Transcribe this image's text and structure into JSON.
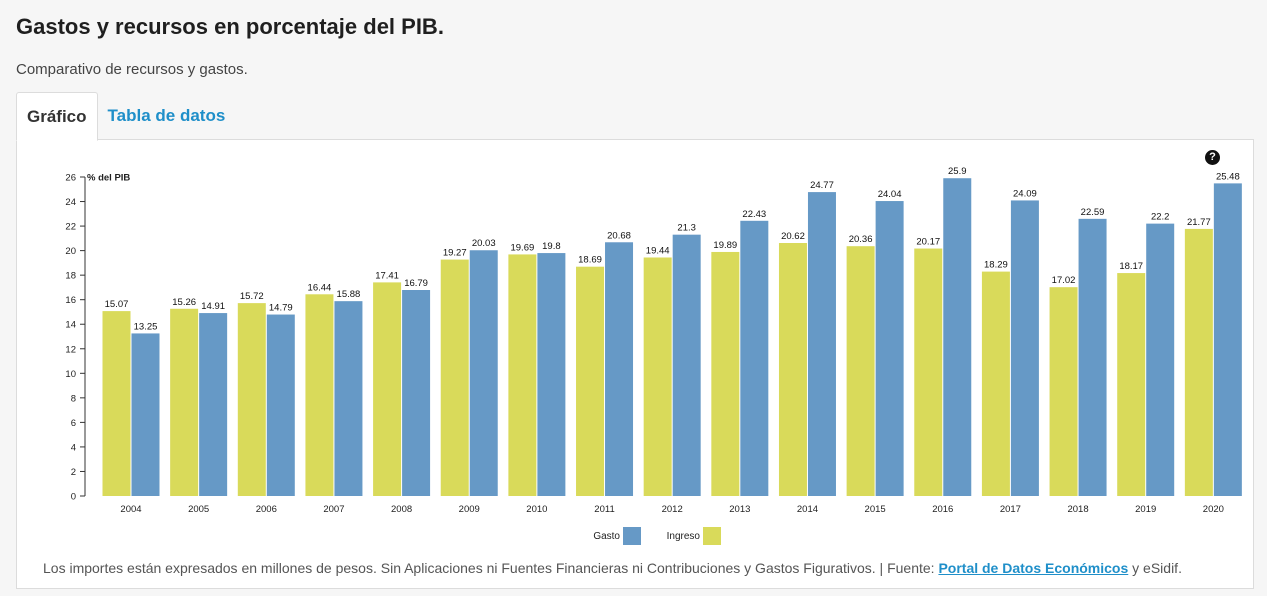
{
  "header": {
    "title": "Gastos y recursos en porcentaje del PIB.",
    "subtitle": "Comparativo de recursos y gastos."
  },
  "tabs": [
    {
      "label": "Gráfico",
      "active": true
    },
    {
      "label": "Tabla de datos",
      "active": false
    }
  ],
  "help_icon": "question-circle-icon",
  "footnote": {
    "text": "Los importes están expresados en millones de pesos. Sin Aplicaciones ni Fuentes Financieras ni Contribuciones y Gastos Figurativos. | Fuente:",
    "link_label": "Portal de Datos Económicos",
    "suffix": "y eSidif."
  },
  "colors": {
    "ingreso": "#d9da5a",
    "gasto": "#6699c6",
    "link": "#1f8fc9"
  },
  "chart_data": {
    "type": "bar",
    "ylabel": "% del PIB",
    "ylim": [
      0,
      26
    ],
    "yticks": [
      0,
      2,
      4,
      6,
      8,
      10,
      12,
      14,
      16,
      18,
      20,
      22,
      24,
      26
    ],
    "grid": false,
    "legend_position": "bottom-center",
    "categories": [
      "2004",
      "2005",
      "2006",
      "2007",
      "2008",
      "2009",
      "2010",
      "2011",
      "2012",
      "2013",
      "2014",
      "2015",
      "2016",
      "2017",
      "2018",
      "2019",
      "2020"
    ],
    "series": [
      {
        "name": "Ingreso",
        "color": "#d9da5a",
        "values": [
          15.07,
          15.26,
          15.72,
          16.44,
          17.41,
          19.27,
          19.69,
          18.69,
          19.44,
          19.89,
          20.62,
          20.36,
          20.17,
          18.29,
          17.02,
          18.17,
          21.77
        ]
      },
      {
        "name": "Gasto",
        "color": "#6699c6",
        "values": [
          13.25,
          14.91,
          14.79,
          15.88,
          16.79,
          20.03,
          19.8,
          20.68,
          21.3,
          22.43,
          24.77,
          24.04,
          25.9,
          24.09,
          22.59,
          22.2,
          25.48
        ]
      }
    ],
    "legend_order": [
      "Gasto",
      "Ingreso"
    ]
  }
}
